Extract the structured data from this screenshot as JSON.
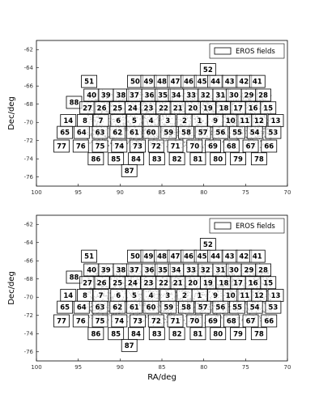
{
  "chart_data": [
    {
      "type": "field-map",
      "ylabel": "Dec/deg",
      "legend": "EROS fields",
      "legend_position": "upper right",
      "xlim": [
        100,
        70
      ],
      "xticks": [
        100,
        95,
        90,
        85,
        80,
        75,
        70
      ],
      "ylim": [
        -77,
        -61
      ],
      "yticks": [
        -62,
        -64,
        -66,
        -68,
        -70,
        -72,
        -74,
        -76
      ],
      "fields": [
        {
          "label": "52",
          "ra": 79.5,
          "dec": -64.2
        },
        {
          "label": "51",
          "ra": 93.7,
          "dec": -65.5
        },
        {
          "label": "50",
          "ra": 88.2,
          "dec": -65.5
        },
        {
          "label": "49",
          "ra": 86.6,
          "dec": -65.5
        },
        {
          "label": "48",
          "ra": 85.0,
          "dec": -65.5
        },
        {
          "label": "47",
          "ra": 83.4,
          "dec": -65.5
        },
        {
          "label": "46",
          "ra": 81.8,
          "dec": -65.5
        },
        {
          "label": "45",
          "ra": 80.2,
          "dec": -65.5
        },
        {
          "label": "44",
          "ra": 78.6,
          "dec": -65.5
        },
        {
          "label": "43",
          "ra": 76.9,
          "dec": -65.5
        },
        {
          "label": "42",
          "ra": 75.2,
          "dec": -65.5
        },
        {
          "label": "41",
          "ra": 73.6,
          "dec": -65.5
        },
        {
          "label": "40",
          "ra": 93.4,
          "dec": -67.0
        },
        {
          "label": "39",
          "ra": 91.7,
          "dec": -67.0
        },
        {
          "label": "38",
          "ra": 89.9,
          "dec": -67.0
        },
        {
          "label": "37",
          "ra": 88.3,
          "dec": -67.0
        },
        {
          "label": "36",
          "ra": 86.5,
          "dec": -67.0
        },
        {
          "label": "35",
          "ra": 84.9,
          "dec": -67.0
        },
        {
          "label": "34",
          "ra": 83.3,
          "dec": -67.0
        },
        {
          "label": "33",
          "ra": 81.5,
          "dec": -67.0
        },
        {
          "label": "32",
          "ra": 79.8,
          "dec": -67.0
        },
        {
          "label": "31",
          "ra": 78.0,
          "dec": -67.0
        },
        {
          "label": "30",
          "ra": 76.4,
          "dec": -67.0
        },
        {
          "label": "29",
          "ra": 74.6,
          "dec": -67.0
        },
        {
          "label": "28",
          "ra": 72.9,
          "dec": -67.0
        },
        {
          "label": "88",
          "ra": 95.5,
          "dec": -67.8
        },
        {
          "label": "27",
          "ra": 93.9,
          "dec": -68.4
        },
        {
          "label": "26",
          "ra": 92.2,
          "dec": -68.4
        },
        {
          "label": "25",
          "ra": 90.3,
          "dec": -68.4
        },
        {
          "label": "24",
          "ra": 88.5,
          "dec": -68.4
        },
        {
          "label": "23",
          "ra": 86.6,
          "dec": -68.4
        },
        {
          "label": "22",
          "ra": 84.8,
          "dec": -68.4
        },
        {
          "label": "21",
          "ra": 83.1,
          "dec": -68.4
        },
        {
          "label": "20",
          "ra": 81.3,
          "dec": -68.4
        },
        {
          "label": "19",
          "ra": 79.5,
          "dec": -68.4
        },
        {
          "label": "18",
          "ra": 77.6,
          "dec": -68.4
        },
        {
          "label": "17",
          "ra": 75.9,
          "dec": -68.4
        },
        {
          "label": "16",
          "ra": 74.1,
          "dec": -68.4
        },
        {
          "label": "15",
          "ra": 72.3,
          "dec": -68.4
        },
        {
          "label": "14",
          "ra": 96.2,
          "dec": -69.8
        },
        {
          "label": "8",
          "ra": 94.2,
          "dec": -69.8
        },
        {
          "label": "7",
          "ra": 92.3,
          "dec": -69.8
        },
        {
          "label": "6",
          "ra": 90.2,
          "dec": -69.8
        },
        {
          "label": "5",
          "ra": 88.3,
          "dec": -69.8
        },
        {
          "label": "4",
          "ra": 86.3,
          "dec": -69.8
        },
        {
          "label": "3",
          "ra": 84.3,
          "dec": -69.8
        },
        {
          "label": "2",
          "ra": 82.3,
          "dec": -69.8
        },
        {
          "label": "1",
          "ra": 80.5,
          "dec": -69.8
        },
        {
          "label": "9",
          "ra": 78.6,
          "dec": -69.8
        },
        {
          "label": "10",
          "ra": 76.8,
          "dec": -69.8
        },
        {
          "label": "11",
          "ra": 75.1,
          "dec": -69.8
        },
        {
          "label": "12",
          "ra": 73.4,
          "dec": -69.8
        },
        {
          "label": "13",
          "ra": 71.4,
          "dec": -69.8
        },
        {
          "label": "65",
          "ra": 96.6,
          "dec": -71.1
        },
        {
          "label": "64",
          "ra": 94.6,
          "dec": -71.1
        },
        {
          "label": "63",
          "ra": 92.4,
          "dec": -71.1
        },
        {
          "label": "62",
          "ra": 90.3,
          "dec": -71.1
        },
        {
          "label": "61",
          "ra": 88.3,
          "dec": -71.1
        },
        {
          "label": "60",
          "ra": 86.3,
          "dec": -71.1
        },
        {
          "label": "59",
          "ra": 84.2,
          "dec": -71.1
        },
        {
          "label": "58",
          "ra": 82.1,
          "dec": -71.1
        },
        {
          "label": "57",
          "ra": 80.1,
          "dec": -71.1
        },
        {
          "label": "56",
          "ra": 78.0,
          "dec": -71.1
        },
        {
          "label": "55",
          "ra": 76.0,
          "dec": -71.1
        },
        {
          "label": "54",
          "ra": 73.9,
          "dec": -71.1
        },
        {
          "label": "53",
          "ra": 71.7,
          "dec": -71.1
        },
        {
          "label": "77",
          "ra": 97.0,
          "dec": -72.6
        },
        {
          "label": "76",
          "ra": 94.7,
          "dec": -72.6
        },
        {
          "label": "75",
          "ra": 92.4,
          "dec": -72.6
        },
        {
          "label": "74",
          "ra": 90.1,
          "dec": -72.6
        },
        {
          "label": "73",
          "ra": 87.9,
          "dec": -72.6
        },
        {
          "label": "72",
          "ra": 85.7,
          "dec": -72.6
        },
        {
          "label": "71",
          "ra": 83.4,
          "dec": -72.6
        },
        {
          "label": "70",
          "ra": 81.1,
          "dec": -72.6
        },
        {
          "label": "69",
          "ra": 78.9,
          "dec": -72.6
        },
        {
          "label": "68",
          "ra": 76.7,
          "dec": -72.6
        },
        {
          "label": "67",
          "ra": 74.4,
          "dec": -72.6
        },
        {
          "label": "66",
          "ra": 72.2,
          "dec": -72.6
        },
        {
          "label": "86",
          "ra": 92.9,
          "dec": -74.0
        },
        {
          "label": "85",
          "ra": 90.5,
          "dec": -74.0
        },
        {
          "label": "84",
          "ra": 88.1,
          "dec": -74.0
        },
        {
          "label": "83",
          "ra": 85.6,
          "dec": -74.0
        },
        {
          "label": "82",
          "ra": 83.2,
          "dec": -74.0
        },
        {
          "label": "81",
          "ra": 80.7,
          "dec": -74.0
        },
        {
          "label": "80",
          "ra": 78.3,
          "dec": -74.0
        },
        {
          "label": "79",
          "ra": 75.9,
          "dec": -74.0
        },
        {
          "label": "78",
          "ra": 73.4,
          "dec": -74.0
        },
        {
          "label": "87",
          "ra": 88.9,
          "dec": -75.3
        }
      ]
    },
    {
      "type": "field-map",
      "ylabel": "Dec/deg",
      "xlabel": "RA/deg",
      "legend": "EROS fields",
      "legend_position": "upper right",
      "xlim": [
        100,
        70
      ],
      "xticks": [
        100,
        95,
        90,
        85,
        80,
        75,
        70
      ],
      "ylim": [
        -77,
        -61
      ],
      "yticks": [
        -62,
        -64,
        -66,
        -68,
        -70,
        -72,
        -74,
        -76
      ],
      "fields": [
        {
          "label": "52",
          "ra": 79.5,
          "dec": -64.2
        },
        {
          "label": "51",
          "ra": 93.7,
          "dec": -65.5
        },
        {
          "label": "50",
          "ra": 88.2,
          "dec": -65.5
        },
        {
          "label": "49",
          "ra": 86.6,
          "dec": -65.5
        },
        {
          "label": "48",
          "ra": 85.0,
          "dec": -65.5
        },
        {
          "label": "47",
          "ra": 83.4,
          "dec": -65.5
        },
        {
          "label": "46",
          "ra": 81.8,
          "dec": -65.5
        },
        {
          "label": "45",
          "ra": 80.2,
          "dec": -65.5
        },
        {
          "label": "44",
          "ra": 78.6,
          "dec": -65.5
        },
        {
          "label": "43",
          "ra": 76.9,
          "dec": -65.5
        },
        {
          "label": "42",
          "ra": 75.2,
          "dec": -65.5
        },
        {
          "label": "41",
          "ra": 73.6,
          "dec": -65.5
        },
        {
          "label": "40",
          "ra": 93.4,
          "dec": -67.0
        },
        {
          "label": "39",
          "ra": 91.7,
          "dec": -67.0
        },
        {
          "label": "38",
          "ra": 89.9,
          "dec": -67.0
        },
        {
          "label": "37",
          "ra": 88.3,
          "dec": -67.0
        },
        {
          "label": "36",
          "ra": 86.5,
          "dec": -67.0
        },
        {
          "label": "35",
          "ra": 84.9,
          "dec": -67.0
        },
        {
          "label": "34",
          "ra": 83.3,
          "dec": -67.0
        },
        {
          "label": "33",
          "ra": 81.5,
          "dec": -67.0
        },
        {
          "label": "32",
          "ra": 79.8,
          "dec": -67.0
        },
        {
          "label": "31",
          "ra": 78.0,
          "dec": -67.0
        },
        {
          "label": "30",
          "ra": 76.4,
          "dec": -67.0
        },
        {
          "label": "29",
          "ra": 74.6,
          "dec": -67.0
        },
        {
          "label": "28",
          "ra": 72.9,
          "dec": -67.0
        },
        {
          "label": "88",
          "ra": 95.5,
          "dec": -67.8
        },
        {
          "label": "27",
          "ra": 93.9,
          "dec": -68.4
        },
        {
          "label": "26",
          "ra": 92.2,
          "dec": -68.4
        },
        {
          "label": "25",
          "ra": 90.3,
          "dec": -68.4
        },
        {
          "label": "24",
          "ra": 88.5,
          "dec": -68.4
        },
        {
          "label": "23",
          "ra": 86.6,
          "dec": -68.4
        },
        {
          "label": "22",
          "ra": 84.8,
          "dec": -68.4
        },
        {
          "label": "21",
          "ra": 83.1,
          "dec": -68.4
        },
        {
          "label": "20",
          "ra": 81.3,
          "dec": -68.4
        },
        {
          "label": "19",
          "ra": 79.5,
          "dec": -68.4
        },
        {
          "label": "18",
          "ra": 77.6,
          "dec": -68.4
        },
        {
          "label": "17",
          "ra": 75.9,
          "dec": -68.4
        },
        {
          "label": "16",
          "ra": 74.1,
          "dec": -68.4
        },
        {
          "label": "15",
          "ra": 72.3,
          "dec": -68.4
        },
        {
          "label": "14",
          "ra": 96.2,
          "dec": -69.8
        },
        {
          "label": "8",
          "ra": 94.2,
          "dec": -69.8
        },
        {
          "label": "7",
          "ra": 92.3,
          "dec": -69.8
        },
        {
          "label": "6",
          "ra": 90.2,
          "dec": -69.8
        },
        {
          "label": "5",
          "ra": 88.3,
          "dec": -69.8
        },
        {
          "label": "4",
          "ra": 86.3,
          "dec": -69.8
        },
        {
          "label": "3",
          "ra": 84.3,
          "dec": -69.8
        },
        {
          "label": "2",
          "ra": 82.3,
          "dec": -69.8
        },
        {
          "label": "1",
          "ra": 80.5,
          "dec": -69.8
        },
        {
          "label": "9",
          "ra": 78.6,
          "dec": -69.8
        },
        {
          "label": "10",
          "ra": 76.8,
          "dec": -69.8
        },
        {
          "label": "11",
          "ra": 75.1,
          "dec": -69.8
        },
        {
          "label": "12",
          "ra": 73.4,
          "dec": -69.8
        },
        {
          "label": "13",
          "ra": 71.4,
          "dec": -69.8
        },
        {
          "label": "65",
          "ra": 96.6,
          "dec": -71.1
        },
        {
          "label": "64",
          "ra": 94.6,
          "dec": -71.1
        },
        {
          "label": "63",
          "ra": 92.4,
          "dec": -71.1
        },
        {
          "label": "62",
          "ra": 90.3,
          "dec": -71.1
        },
        {
          "label": "61",
          "ra": 88.3,
          "dec": -71.1
        },
        {
          "label": "60",
          "ra": 86.3,
          "dec": -71.1
        },
        {
          "label": "59",
          "ra": 84.2,
          "dec": -71.1
        },
        {
          "label": "58",
          "ra": 82.1,
          "dec": -71.1
        },
        {
          "label": "57",
          "ra": 80.1,
          "dec": -71.1
        },
        {
          "label": "56",
          "ra": 78.0,
          "dec": -71.1
        },
        {
          "label": "55",
          "ra": 76.0,
          "dec": -71.1
        },
        {
          "label": "54",
          "ra": 73.9,
          "dec": -71.1
        },
        {
          "label": "53",
          "ra": 71.7,
          "dec": -71.1
        },
        {
          "label": "77",
          "ra": 97.0,
          "dec": -72.6
        },
        {
          "label": "76",
          "ra": 94.7,
          "dec": -72.6
        },
        {
          "label": "75",
          "ra": 92.4,
          "dec": -72.6
        },
        {
          "label": "74",
          "ra": 90.1,
          "dec": -72.6
        },
        {
          "label": "73",
          "ra": 87.9,
          "dec": -72.6
        },
        {
          "label": "72",
          "ra": 85.7,
          "dec": -72.6
        },
        {
          "label": "71",
          "ra": 83.4,
          "dec": -72.6
        },
        {
          "label": "70",
          "ra": 81.1,
          "dec": -72.6
        },
        {
          "label": "69",
          "ra": 78.9,
          "dec": -72.6
        },
        {
          "label": "68",
          "ra": 76.7,
          "dec": -72.6
        },
        {
          "label": "67",
          "ra": 74.4,
          "dec": -72.6
        },
        {
          "label": "66",
          "ra": 72.2,
          "dec": -72.6
        },
        {
          "label": "86",
          "ra": 92.9,
          "dec": -74.0
        },
        {
          "label": "85",
          "ra": 90.5,
          "dec": -74.0
        },
        {
          "label": "84",
          "ra": 88.1,
          "dec": -74.0
        },
        {
          "label": "83",
          "ra": 85.6,
          "dec": -74.0
        },
        {
          "label": "82",
          "ra": 83.2,
          "dec": -74.0
        },
        {
          "label": "81",
          "ra": 80.7,
          "dec": -74.0
        },
        {
          "label": "80",
          "ra": 78.3,
          "dec": -74.0
        },
        {
          "label": "79",
          "ra": 75.9,
          "dec": -74.0
        },
        {
          "label": "78",
          "ra": 73.4,
          "dec": -74.0
        },
        {
          "label": "87",
          "ra": 88.9,
          "dec": -75.3
        }
      ]
    }
  ]
}
